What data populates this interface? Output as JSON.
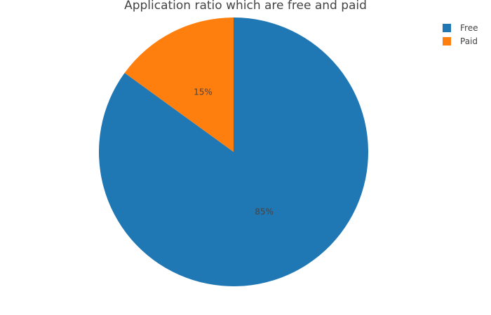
{
  "chart_data": {
    "type": "pie",
    "title": "Application ratio which are free and paid",
    "slices": [
      {
        "label": "Free",
        "value": 85,
        "text": "85%",
        "color": "#1f77b4"
      },
      {
        "label": "Paid",
        "value": 15,
        "text": "15%",
        "color": "#ff7f0e"
      }
    ],
    "legend": {
      "position": "top-right",
      "entries": [
        "Free",
        "Paid"
      ]
    },
    "start_angle_deg": 90,
    "direction": "clockwise"
  }
}
